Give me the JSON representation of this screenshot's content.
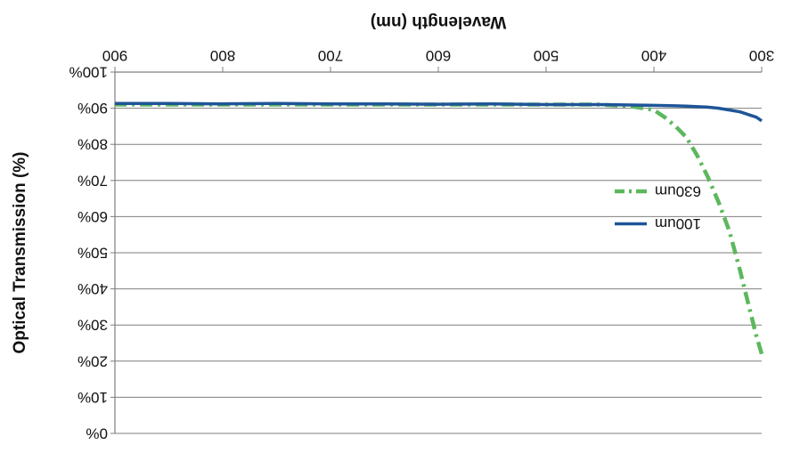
{
  "chart_data": {
    "type": "line",
    "title": "",
    "xlabel": "Wavelength (nm)",
    "ylabel": "Optical Transmission (%)",
    "xlim": [
      300,
      900
    ],
    "ylim": [
      0,
      100
    ],
    "x_ticks": [
      "300",
      "400",
      "500",
      "600",
      "700",
      "800",
      "900"
    ],
    "y_ticks": [
      "0%",
      "10%",
      "20%",
      "30%",
      "40%",
      "50%",
      "60%",
      "70%",
      "80%",
      "90%",
      "100%"
    ],
    "grid": true,
    "legend_position": "right",
    "rendering": "rotated 180 degrees",
    "series": [
      {
        "name": "630um",
        "color": "#5cb85c",
        "style": "dash-dot",
        "x": [
          300,
          305,
          310,
          315,
          320,
          330,
          340,
          350,
          360,
          370,
          380,
          390,
          400,
          420,
          450,
          500,
          550,
          600,
          650,
          700,
          750,
          800,
          850,
          900
        ],
        "y": [
          22,
          27,
          33,
          39,
          45,
          56,
          64,
          71,
          77,
          82,
          85,
          87.5,
          89.5,
          90.5,
          91,
          91,
          91,
          91,
          91,
          91,
          91,
          91,
          91,
          91
        ]
      },
      {
        "name": "100um",
        "color": "#1f5597",
        "style": "solid",
        "x": [
          300,
          305,
          310,
          320,
          330,
          340,
          350,
          370,
          400,
          450,
          500,
          550,
          600,
          650,
          700,
          750,
          800,
          850,
          900
        ],
        "y": [
          86.5,
          87.5,
          88,
          89,
          89.5,
          90,
          90.3,
          90.6,
          90.8,
          91,
          91,
          91.2,
          91.1,
          91.2,
          91.2,
          91.3,
          91.2,
          91.3,
          91.3
        ]
      }
    ]
  }
}
